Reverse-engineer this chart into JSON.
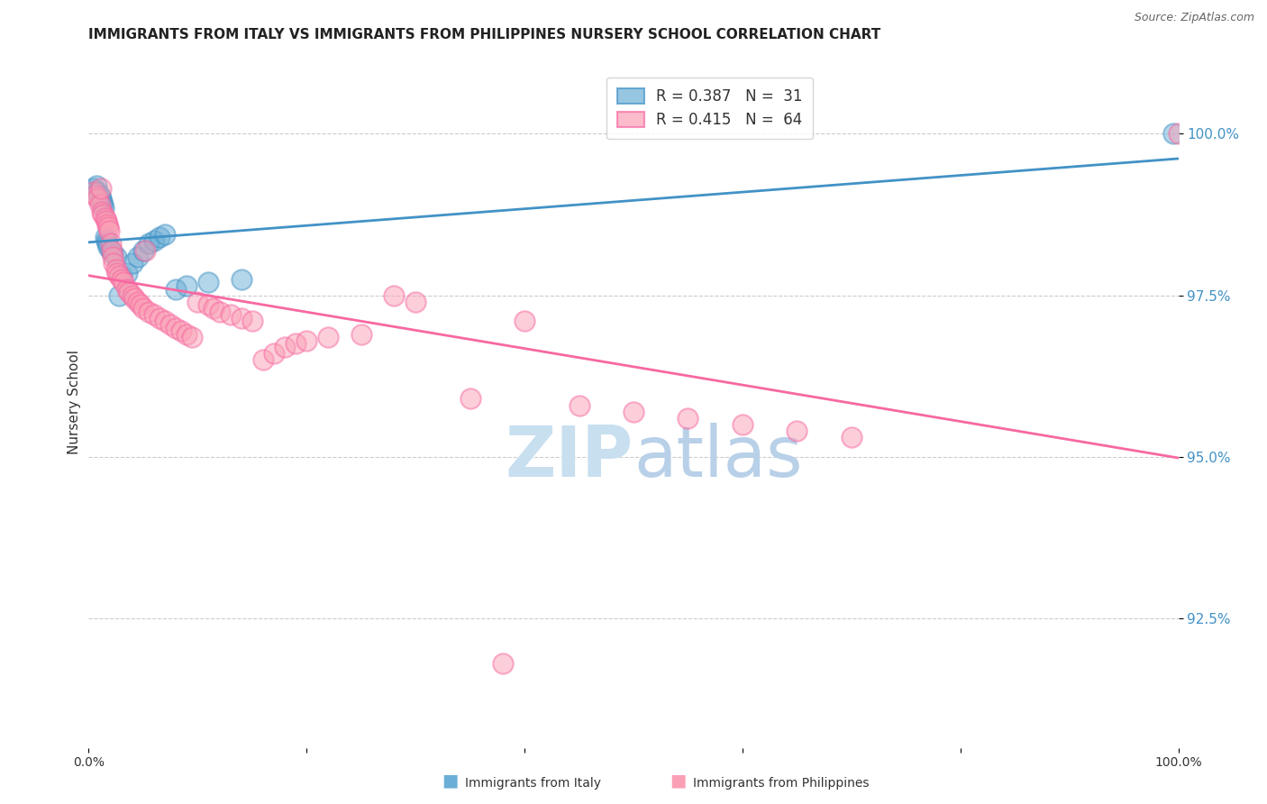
{
  "title": "IMMIGRANTS FROM ITALY VS IMMIGRANTS FROM PHILIPPINES NURSERY SCHOOL CORRELATION CHART",
  "source": "Source: ZipAtlas.com",
  "ylabel": "Nursery School",
  "y_tick_values": [
    92.5,
    95.0,
    97.5,
    100.0
  ],
  "x_range": [
    0.0,
    100.0
  ],
  "y_range": [
    90.5,
    101.2
  ],
  "italy_color": "#6baed6",
  "italy_edge": "#4292c6",
  "philippines_color": "#fa9fb5",
  "philippines_edge": "#f768a1",
  "italy_line_color": "#4292c6",
  "philippines_line_color": "#f768a1",
  "legend_italy_label": "R = 0.387   N =  31",
  "legend_phil_label": "R = 0.415   N =  64",
  "watermark_zip_color": "#c8dff0",
  "watermark_atlas_color": "#b8d0e8",
  "bottom_legend_italy": "Immigrants from Italy",
  "bottom_legend_phil": "Immigrants from Philippines",
  "italy_x": [
    0.3,
    0.5,
    0.7,
    0.8,
    1.0,
    1.1,
    1.2,
    1.3,
    1.4,
    1.5,
    1.6,
    1.7,
    1.8,
    2.0,
    2.2,
    2.5,
    2.8,
    3.0,
    3.5,
    4.0,
    4.5,
    5.0,
    5.5,
    6.0,
    6.5,
    7.0,
    8.0,
    9.0,
    11.0,
    14.0,
    99.5
  ],
  "italy_y": [
    99.1,
    99.15,
    99.2,
    99.1,
    99.05,
    99.0,
    98.95,
    98.9,
    98.85,
    98.4,
    98.35,
    98.3,
    98.25,
    98.2,
    98.15,
    98.1,
    97.5,
    97.8,
    97.85,
    98.0,
    98.1,
    98.2,
    98.3,
    98.35,
    98.4,
    98.45,
    97.6,
    97.65,
    97.7,
    97.75,
    100.0
  ],
  "phil_x": [
    0.4,
    0.6,
    0.8,
    1.0,
    1.1,
    1.2,
    1.3,
    1.5,
    1.6,
    1.7,
    1.8,
    1.9,
    2.0,
    2.1,
    2.2,
    2.3,
    2.5,
    2.6,
    2.8,
    3.0,
    3.2,
    3.5,
    3.7,
    4.0,
    4.2,
    4.5,
    4.8,
    5.0,
    5.2,
    5.5,
    6.0,
    6.5,
    7.0,
    7.5,
    8.0,
    8.5,
    9.0,
    9.5,
    10.0,
    11.0,
    11.5,
    12.0,
    13.0,
    14.0,
    15.0,
    16.0,
    17.0,
    18.0,
    19.0,
    20.0,
    22.0,
    25.0,
    28.0,
    30.0,
    35.0,
    40.0,
    45.0,
    50.0,
    55.0,
    60.0,
    65.0,
    70.0,
    38.0,
    100.0
  ],
  "phil_y": [
    99.1,
    99.05,
    99.0,
    98.9,
    99.15,
    98.8,
    98.75,
    98.7,
    98.65,
    98.6,
    98.55,
    98.5,
    98.3,
    98.2,
    98.1,
    98.0,
    97.9,
    97.85,
    97.8,
    97.75,
    97.7,
    97.6,
    97.55,
    97.5,
    97.45,
    97.4,
    97.35,
    97.3,
    98.2,
    97.25,
    97.2,
    97.15,
    97.1,
    97.05,
    97.0,
    96.95,
    96.9,
    96.85,
    97.4,
    97.35,
    97.3,
    97.25,
    97.2,
    97.15,
    97.1,
    96.5,
    96.6,
    96.7,
    96.75,
    96.8,
    96.85,
    96.9,
    97.5,
    97.4,
    95.9,
    97.1,
    95.8,
    95.7,
    95.6,
    95.5,
    95.4,
    95.3,
    91.8,
    100.0
  ]
}
